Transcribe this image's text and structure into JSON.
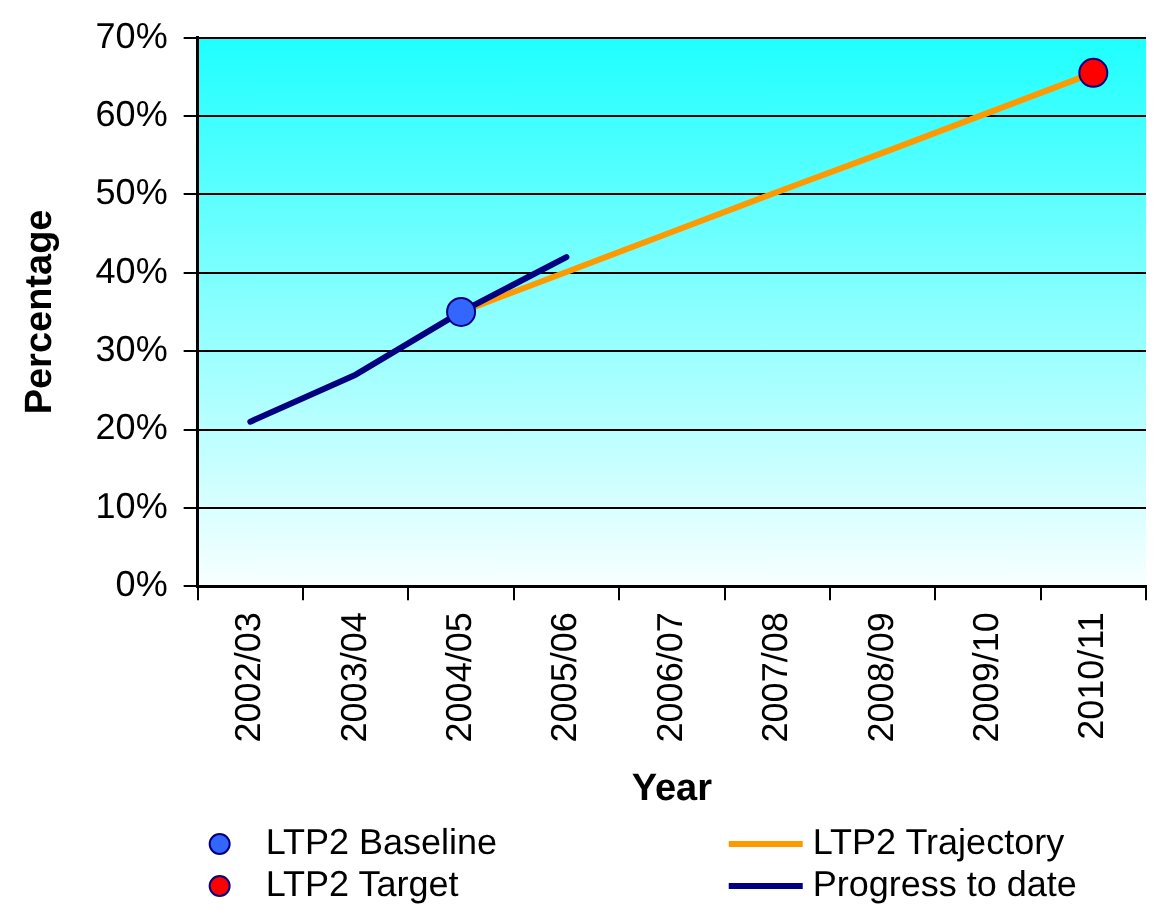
{
  "chart_data": {
    "type": "line",
    "xlabel": "Year",
    "ylabel": "Percentage",
    "categories": [
      "2002/03",
      "2003/04",
      "2004/05",
      "2005/06",
      "2006/07",
      "2007/08",
      "2008/09",
      "2009/10",
      "2010/11"
    ],
    "series": [
      {
        "name": "LTP2 Baseline",
        "type": "scatter",
        "marker": "circle",
        "color": "#3366ff",
        "values": [
          null,
          null,
          35,
          null,
          null,
          null,
          null,
          null,
          null
        ]
      },
      {
        "name": "LTP2 Trajectory",
        "type": "line",
        "color": "#ff9900",
        "values": [
          null,
          null,
          35,
          40.1,
          45.2,
          50.3,
          55.3,
          60.4,
          65.5
        ]
      },
      {
        "name": "LTP2 Target",
        "type": "scatter",
        "marker": "circle",
        "color": "#ff0000",
        "values": [
          null,
          null,
          null,
          null,
          null,
          null,
          null,
          null,
          65.5
        ]
      },
      {
        "name": "Progress to date",
        "type": "line",
        "color": "#000080",
        "values": [
          21,
          27,
          35,
          42,
          null,
          null,
          null,
          null,
          null
        ]
      }
    ],
    "ylim": [
      0,
      70
    ],
    "yticks": [
      {
        "value": 0,
        "label": "0%"
      },
      {
        "value": 10,
        "label": "10%"
      },
      {
        "value": 20,
        "label": "20%"
      },
      {
        "value": 30,
        "label": "30%"
      },
      {
        "value": 40,
        "label": "40%"
      },
      {
        "value": 50,
        "label": "50%"
      },
      {
        "value": 60,
        "label": "60%"
      },
      {
        "value": 70,
        "label": "70%"
      }
    ],
    "grid": "y",
    "legend": "bottom"
  }
}
